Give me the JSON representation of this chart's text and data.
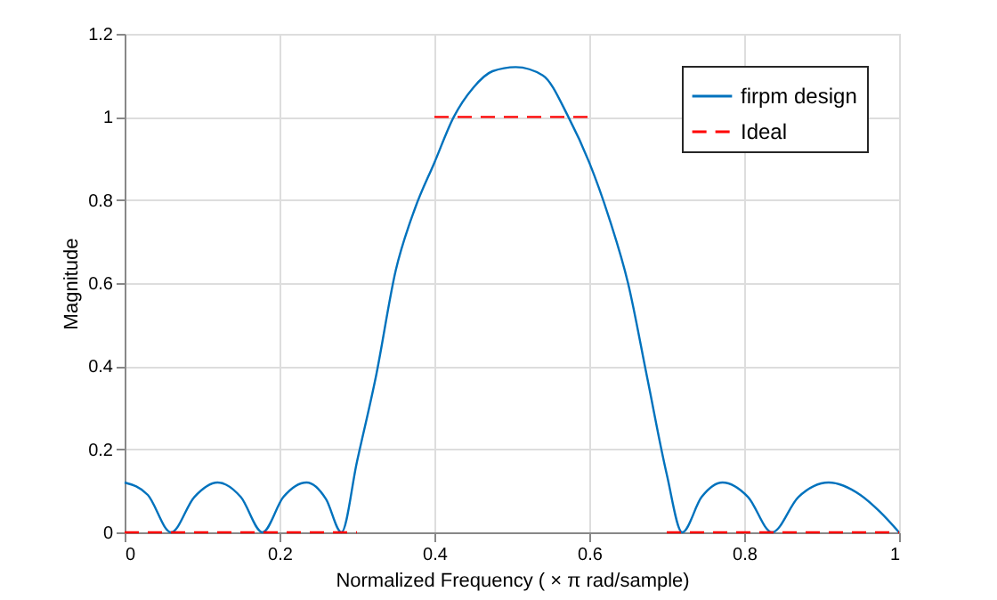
{
  "chart_data": {
    "type": "line",
    "xlabel": "Normalized Frequency ( × π rad/sample)",
    "ylabel": "Magnitude",
    "xlim": [
      0,
      1
    ],
    "xticks": [
      0,
      0.2,
      0.4,
      0.6,
      0.8,
      1
    ],
    "ylim": [
      0,
      1.2
    ],
    "yticks": [
      0,
      0.2,
      0.4,
      0.6,
      0.8,
      1,
      1.2
    ],
    "grid": true,
    "legend": "top right",
    "series": [
      {
        "name": "firpm design",
        "color": "#0072bd",
        "line_style": "solid",
        "x": [
          0,
          0.03,
          0.06,
          0.09,
          0.12,
          0.15,
          0.178,
          0.205,
          0.235,
          0.26,
          0.28,
          0.3,
          0.325,
          0.35,
          0.375,
          0.4,
          0.425,
          0.45,
          0.475,
          0.505,
          0.54,
          0.573,
          0.6,
          0.625,
          0.65,
          0.675,
          0.7,
          0.72,
          0.745,
          0.772,
          0.805,
          0.836,
          0.87,
          0.909,
          0.95,
          0.975,
          1
        ],
        "values": [
          0.12,
          0.09,
          0,
          0.085,
          0.12,
          0.085,
          0,
          0.085,
          0.12,
          0.08,
          0,
          0.17,
          0.38,
          0.63,
          0.78,
          0.89,
          1.0,
          1.07,
          1.11,
          1.12,
          1.1,
          1.0,
          0.89,
          0.76,
          0.6,
          0.37,
          0.14,
          0,
          0.085,
          0.12,
          0.085,
          0,
          0.085,
          0.12,
          0.09,
          0.05,
          0
        ]
      },
      {
        "name": "Ideal",
        "color": "#ff0000",
        "line_style": "dashed",
        "x": [
          0,
          0.3,
          0.35,
          0.4,
          0.6,
          0.65,
          0.7,
          1
        ],
        "values": [
          0,
          0,
          null,
          1,
          1,
          null,
          0,
          0
        ]
      }
    ]
  }
}
